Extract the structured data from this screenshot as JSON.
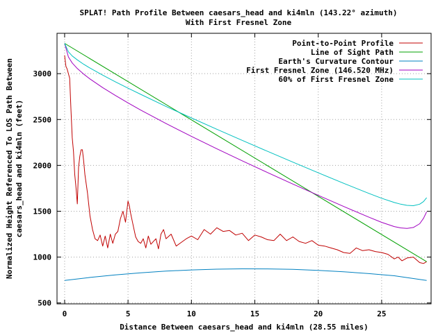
{
  "chart_data": {
    "type": "line",
    "title": "SPLAT! Path Profile Between caesars_head and ki4mln (143.22° azimuth)",
    "subtitle": "With First Fresnel Zone",
    "xlabel": "Distance Between caesars_head and ki4mln (28.55 miles)",
    "ylabel_line1": "Normalized Height Referenced To LOS Path Between",
    "ylabel_line2": "caesars_head and ki4mln (feet)",
    "xlim": [
      -0.6,
      28.9
    ],
    "ylim": [
      490,
      3440
    ],
    "x_ticks": [
      "0",
      "5",
      "10",
      "15",
      "20",
      "25"
    ],
    "y_ticks": [
      "500",
      "1000",
      "1500",
      "2000",
      "2500",
      "3000"
    ],
    "grid": true,
    "legend_position": "top-right",
    "series": [
      {
        "name": "Point-to-Point Profile",
        "color": "#c00000",
        "x": [
          0,
          0.1,
          0.2,
          0.3,
          0.4,
          0.5,
          0.6,
          0.7,
          0.8,
          0.9,
          1.0,
          1.1,
          1.2,
          1.3,
          1.4,
          1.5,
          1.6,
          1.8,
          2.0,
          2.2,
          2.4,
          2.6,
          2.8,
          3.0,
          3.2,
          3.4,
          3.6,
          3.8,
          4.0,
          4.2,
          4.4,
          4.6,
          4.8,
          5.0,
          5.1,
          5.2,
          5.4,
          5.6,
          5.8,
          6.0,
          6.2,
          6.4,
          6.6,
          6.8,
          7.0,
          7.2,
          7.4,
          7.6,
          7.8,
          8.0,
          8.4,
          8.8,
          9.2,
          9.6,
          10.0,
          10.5,
          11.0,
          11.5,
          12.0,
          12.5,
          13.0,
          13.5,
          14.0,
          14.5,
          15.0,
          15.5,
          16.0,
          16.5,
          17.0,
          17.5,
          18.0,
          18.5,
          19.0,
          19.5,
          20.0,
          20.5,
          21.0,
          21.5,
          22.0,
          22.5,
          23.0,
          23.5,
          24.0,
          24.5,
          25.0,
          25.5,
          26.0,
          26.3,
          26.6,
          27.0,
          27.5,
          28.0,
          28.3,
          28.55
        ],
        "y": [
          3200,
          3080,
          3050,
          3000,
          2950,
          2600,
          2300,
          2150,
          1900,
          1750,
          1580,
          1980,
          2100,
          2170,
          2170,
          2050,
          1900,
          1700,
          1450,
          1300,
          1200,
          1180,
          1240,
          1120,
          1230,
          1100,
          1250,
          1150,
          1250,
          1280,
          1420,
          1500,
          1380,
          1610,
          1560,
          1480,
          1350,
          1220,
          1170,
          1150,
          1200,
          1100,
          1230,
          1140,
          1170,
          1200,
          1090,
          1250,
          1300,
          1200,
          1250,
          1120,
          1160,
          1200,
          1230,
          1190,
          1300,
          1250,
          1320,
          1280,
          1290,
          1240,
          1260,
          1180,
          1240,
          1220,
          1190,
          1180,
          1250,
          1180,
          1220,
          1170,
          1150,
          1180,
          1130,
          1120,
          1100,
          1080,
          1050,
          1040,
          1100,
          1070,
          1080,
          1060,
          1050,
          1030,
          980,
          1000,
          960,
          990,
          1000,
          940,
          930,
          950
        ]
      },
      {
        "name": "Line of Sight Path",
        "color": "#00a000",
        "x": [
          0,
          28.55
        ],
        "y": [
          3330,
          950
        ]
      },
      {
        "name": "Earth's Curvature Contour",
        "color": "#0080c0",
        "x": [
          0,
          2,
          4,
          6,
          8,
          10,
          12,
          14,
          16,
          18,
          20,
          22,
          24,
          26,
          28.55
        ],
        "y": [
          745,
          778,
          806,
          829,
          847,
          860,
          868,
          872,
          871,
          866,
          855,
          840,
          820,
          796,
          745
        ]
      },
      {
        "name": "First Fresnel Zone (146.520 MHz)",
        "color": "#a000c0",
        "x": [
          0,
          0.3,
          0.6,
          1,
          1.5,
          2,
          3,
          4,
          5,
          6,
          8,
          10,
          12,
          14,
          16,
          18,
          20,
          22,
          24,
          25,
          26,
          26.5,
          27,
          27.5,
          28,
          28.3,
          28.55
        ],
        "y": [
          3330,
          3182,
          3116,
          3056,
          2995,
          2942,
          2848,
          2762,
          2681,
          2603,
          2456,
          2316,
          2181,
          2050,
          1922,
          1796,
          1673,
          1552,
          1435,
          1379,
          1333,
          1318,
          1313,
          1323,
          1364,
          1423,
          1493
        ]
      },
      {
        "name": "60% of First Fresnel Zone",
        "color": "#00c0c0",
        "x": [
          0,
          0.3,
          0.6,
          1,
          1.5,
          2,
          3,
          4,
          5,
          6,
          8,
          10,
          12,
          14,
          16,
          18,
          20,
          22,
          24,
          25,
          26,
          26.5,
          27,
          27.5,
          28,
          28.3,
          28.55
        ],
        "y": [
          3330,
          3238,
          3193,
          3150,
          3103,
          3061,
          2984,
          2911,
          2842,
          2774,
          2643,
          2517,
          2394,
          2273,
          2153,
          2035,
          1919,
          1805,
          1694,
          1641,
          1595,
          1577,
          1564,
          1560,
          1577,
          1605,
          1648
        ]
      }
    ]
  }
}
